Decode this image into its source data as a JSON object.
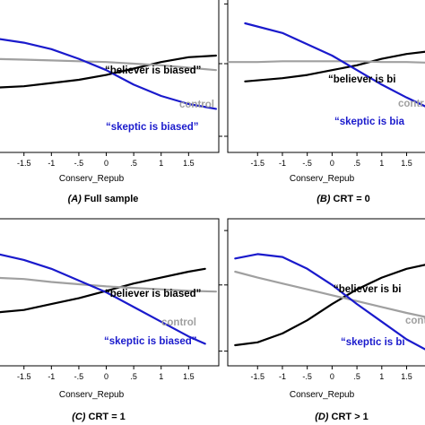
{
  "chart_data": [
    {
      "type": "line",
      "panel_label": "(A)",
      "title": "Full sample",
      "xlabel": "Conserv_Repub",
      "xticks": [
        "-1.5",
        "-1",
        "-.5",
        "0",
        ".5",
        "1",
        "1.5"
      ],
      "xlim": [
        -2.1,
        2.05
      ],
      "ylim": [
        0,
        1
      ],
      "series": [
        {
          "name": "“believer is biased”",
          "color": "#000000",
          "x": [
            -2.1,
            -1.5,
            -1.0,
            -0.5,
            0.0,
            0.5,
            1.0,
            1.5,
            2.0
          ],
          "y": [
            0.4,
            0.41,
            0.43,
            0.45,
            0.48,
            0.52,
            0.56,
            0.59,
            0.6
          ]
        },
        {
          "name": "control",
          "color": "#a0a0a0",
          "x": [
            -2.1,
            -1.5,
            -1.0,
            -0.5,
            0.0,
            0.5,
            1.0,
            1.5,
            2.0
          ],
          "y": [
            0.58,
            0.575,
            0.57,
            0.565,
            0.56,
            0.55,
            0.54,
            0.525,
            0.51
          ]
        },
        {
          "name": "“skeptic is biased”",
          "color": "#1a1acc",
          "x": [
            -2.1,
            -1.5,
            -1.0,
            -0.5,
            0.0,
            0.5,
            1.0,
            1.5,
            2.0
          ],
          "y": [
            0.71,
            0.68,
            0.64,
            0.58,
            0.51,
            0.42,
            0.35,
            0.3,
            0.27
          ]
        }
      ]
    },
    {
      "type": "line",
      "panel_label": "(B)",
      "title": "CRT = 0",
      "xlabel": "Conserv_Repub",
      "xticks": [
        "-1.5",
        "-1",
        "-.5",
        "0",
        ".5",
        "1",
        "1.5"
      ],
      "xlim": [
        -2.1,
        2.05
      ],
      "ylim": [
        0,
        1
      ],
      "series": [
        {
          "name": "“believer is biased”",
          "color": "#000000",
          "x": [
            -1.75,
            -1.0,
            -0.5,
            0.0,
            0.5,
            1.0,
            1.5,
            2.05
          ],
          "y": [
            0.44,
            0.46,
            0.48,
            0.51,
            0.54,
            0.58,
            0.61,
            0.63
          ]
        },
        {
          "name": "control",
          "color": "#a0a0a0",
          "x": [
            -2.1,
            -1.5,
            -1.0,
            -0.5,
            0.0,
            0.5,
            1.0,
            1.5,
            2.05
          ],
          "y": [
            0.56,
            0.56,
            0.565,
            0.565,
            0.565,
            0.565,
            0.56,
            0.56,
            0.555
          ]
        },
        {
          "name": "“skeptic is biased”",
          "color": "#1a1acc",
          "x": [
            -1.75,
            -1.0,
            -0.5,
            0.0,
            0.5,
            1.0,
            1.5,
            2.05
          ],
          "y": [
            0.8,
            0.74,
            0.67,
            0.6,
            0.51,
            0.42,
            0.34,
            0.26
          ]
        }
      ]
    },
    {
      "type": "line",
      "panel_label": "(C)",
      "title": "CRT = 1",
      "xlabel": "Conserv_Repub",
      "xticks": [
        "-1.5",
        "-1",
        "-.5",
        "0",
        ".5",
        "1",
        "1.5"
      ],
      "xlim": [
        -2.1,
        2.05
      ],
      "ylim": [
        0,
        1
      ],
      "series": [
        {
          "name": "“believer is biased”",
          "color": "#000000",
          "x": [
            -2.1,
            -1.5,
            -1.0,
            -0.5,
            0.0,
            0.5,
            1.0,
            1.5,
            1.8
          ],
          "y": [
            0.36,
            0.38,
            0.42,
            0.46,
            0.51,
            0.56,
            0.6,
            0.64,
            0.66
          ]
        },
        {
          "name": "control",
          "color": "#a0a0a0",
          "x": [
            -2.1,
            -1.5,
            -1.0,
            -0.5,
            0.0,
            0.5,
            1.0,
            1.5,
            2.0
          ],
          "y": [
            0.6,
            0.59,
            0.57,
            0.555,
            0.54,
            0.53,
            0.52,
            0.51,
            0.505
          ]
        },
        {
          "name": "“skeptic is biased”",
          "color": "#1a1acc",
          "x": [
            -2.1,
            -1.5,
            -1.0,
            -0.5,
            0.0,
            0.5,
            1.0,
            1.5,
            1.8
          ],
          "y": [
            0.77,
            0.72,
            0.66,
            0.58,
            0.5,
            0.4,
            0.3,
            0.2,
            0.15
          ]
        }
      ]
    },
    {
      "type": "line",
      "panel_label": "(D)",
      "title": "CRT > 1",
      "xlabel": "Conserv_Repub",
      "xticks": [
        "-1.5",
        "-1",
        "-.5",
        "0",
        ".5",
        "1",
        "1.5"
      ],
      "xlim": [
        -2.1,
        2.05
      ],
      "ylim": [
        0,
        1
      ],
      "series": [
        {
          "name": "“believer is biased”",
          "color": "#000000",
          "x": [
            -1.95,
            -1.5,
            -1.0,
            -0.5,
            0.0,
            0.5,
            1.0,
            1.5,
            2.05
          ],
          "y": [
            0.14,
            0.16,
            0.22,
            0.31,
            0.42,
            0.52,
            0.6,
            0.66,
            0.7
          ]
        },
        {
          "name": "control",
          "color": "#a0a0a0",
          "x": [
            -1.95,
            -1.5,
            -1.0,
            -0.5,
            0.0,
            0.5,
            1.0,
            1.5,
            2.05
          ],
          "y": [
            0.64,
            0.6,
            0.56,
            0.52,
            0.48,
            0.44,
            0.4,
            0.36,
            0.32
          ]
        },
        {
          "name": "“skeptic is biased”",
          "color": "#1a1acc",
          "x": [
            -1.95,
            -1.5,
            -1.0,
            -0.5,
            0.0,
            0.5,
            1.0,
            1.5,
            2.05
          ],
          "y": [
            0.73,
            0.76,
            0.74,
            0.66,
            0.55,
            0.42,
            0.3,
            0.18,
            0.08
          ]
        }
      ]
    }
  ],
  "labels": {
    "panels": [
      {
        "believer": "“believer is biased”",
        "control": "control",
        "skeptic": "“skeptic is biased”"
      },
      {
        "believer": "“believer is bi",
        "control": "contr",
        "skeptic": "“skeptic is bia"
      },
      {
        "believer": "“believer is biased”",
        "control": "control",
        "skeptic": "“skeptic is biased”"
      },
      {
        "believer": "“believer is bi",
        "control": "contr",
        "skeptic": "“skeptic is bi"
      }
    ]
  }
}
